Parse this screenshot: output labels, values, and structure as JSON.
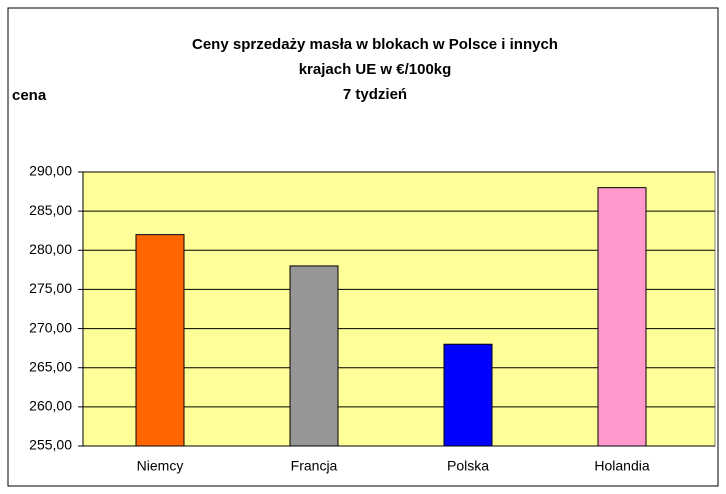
{
  "chart_data": {
    "type": "bar",
    "title": [
      "Ceny sprzedaży masła w blokach w Polsce i  innych",
      "krajach UE w €/100kg",
      "7 tydzień"
    ],
    "y_label": "cena",
    "categories": [
      "Niemcy",
      "Francja",
      "Polska",
      "Holandia"
    ],
    "values": [
      282,
      278,
      268,
      288
    ],
    "colors": [
      "#ff6600",
      "#969696",
      "#0000ff",
      "#ff99cc"
    ],
    "ylim": [
      255,
      290
    ],
    "yticks": [
      {
        "value": 255,
        "label": "255,00"
      },
      {
        "value": 260,
        "label": "260,00"
      },
      {
        "value": 265,
        "label": "265,00"
      },
      {
        "value": 270,
        "label": "270,00"
      },
      {
        "value": 275,
        "label": "275,00"
      },
      {
        "value": 280,
        "label": "280,00"
      },
      {
        "value": 285,
        "label": "285,00"
      },
      {
        "value": 290,
        "label": "290,00"
      }
    ],
    "grid": true
  }
}
